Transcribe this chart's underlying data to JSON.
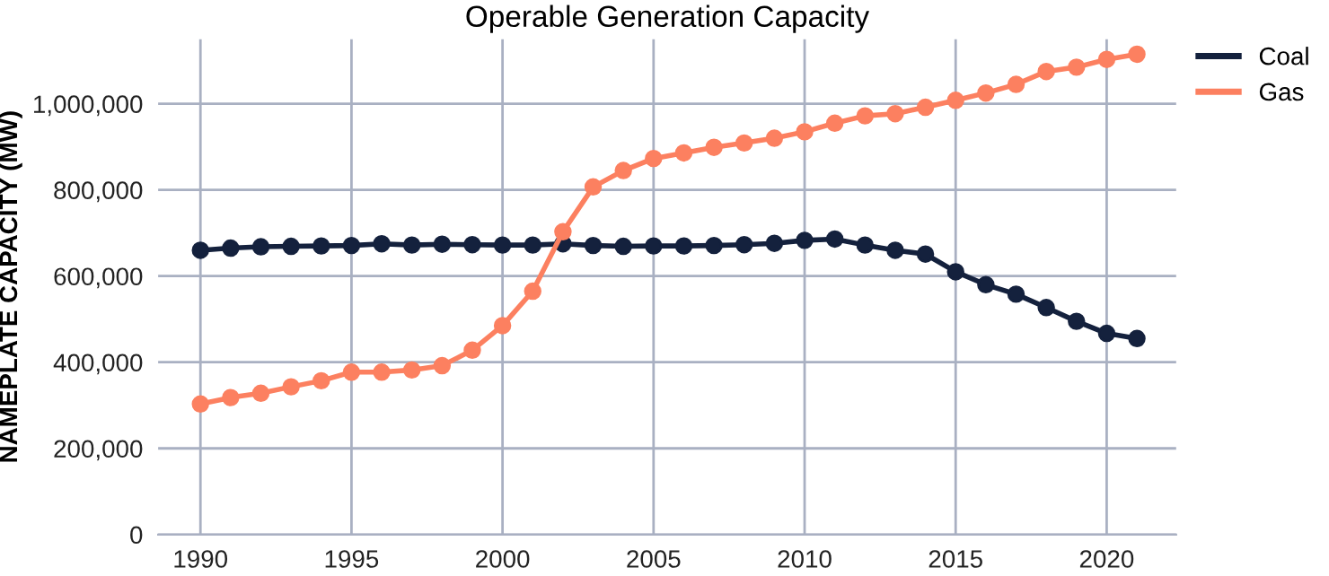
{
  "chart_data": {
    "type": "line",
    "title": "Operable Generation Capacity",
    "ylabel": "NAMEPLATE CAPACITY (MW)",
    "x": [
      1990,
      1991,
      1992,
      1993,
      1994,
      1995,
      1996,
      1997,
      1998,
      1999,
      2000,
      2001,
      2002,
      2003,
      2004,
      2005,
      2006,
      2007,
      2008,
      2009,
      2010,
      2011,
      2012,
      2013,
      2014,
      2015,
      2016,
      2017,
      2018,
      2019,
      2020,
      2021
    ],
    "series": [
      {
        "name": "Coal",
        "color": "#14213d",
        "values": [
          660000,
          665000,
          668000,
          669000,
          670000,
          671000,
          675000,
          672000,
          674000,
          673000,
          672000,
          672000,
          675000,
          671000,
          669000,
          670000,
          670000,
          671000,
          673000,
          676000,
          683000,
          686000,
          672000,
          660000,
          651000,
          610000,
          580000,
          558000,
          527000,
          495000,
          467000,
          455000
        ]
      },
      {
        "name": "Gas",
        "color": "#fc8060",
        "values": [
          303000,
          318000,
          328000,
          343000,
          357000,
          377000,
          377000,
          382000,
          392000,
          428000,
          485000,
          565000,
          703000,
          807000,
          845000,
          873000,
          886000,
          899000,
          909000,
          920000,
          935000,
          955000,
          972000,
          977000,
          992000,
          1008000,
          1025000,
          1045000,
          1075000,
          1085000,
          1103000,
          1115000
        ]
      }
    ],
    "xlim": [
      1988.6,
      2022.3
    ],
    "xticks": [
      1990,
      1995,
      2000,
      2005,
      2010,
      2015,
      2020
    ],
    "ylim": [
      0,
      1150000
    ],
    "yticks": [
      {
        "value": 0,
        "label": "0"
      },
      {
        "value": 200000,
        "label": "200,000"
      },
      {
        "value": 400000,
        "label": "400,000"
      },
      {
        "value": 600000,
        "label": "600,000"
      },
      {
        "value": 800000,
        "label": "800,000"
      },
      {
        "value": 1000000,
        "label": "1,000,000"
      }
    ],
    "grid": true,
    "legend": "top right",
    "marker": "circle",
    "line_style": "solid"
  }
}
